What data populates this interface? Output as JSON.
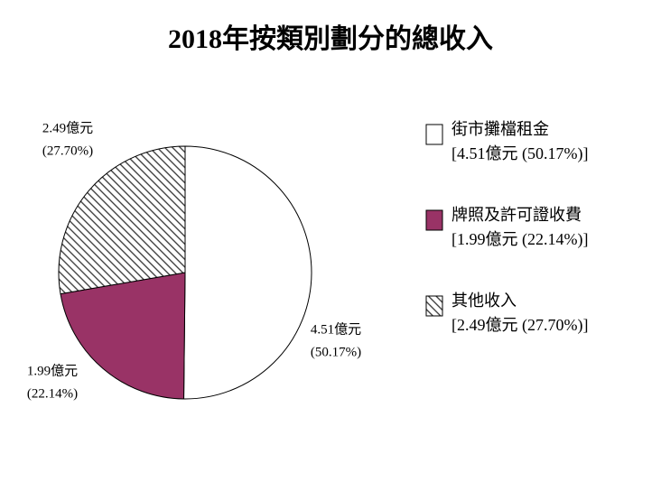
{
  "chart_data": {
    "type": "pie",
    "title": "2018年按類別劃分的總收入",
    "categories": [
      "街市攤檔租金",
      "牌照及許可證收費",
      "其他收入"
    ],
    "values": [
      4.51,
      1.99,
      2.49
    ],
    "value_labels": [
      "4.51億元",
      "1.99億元",
      "2.49億元"
    ],
    "percentages": [
      50.17,
      22.14,
      27.7
    ],
    "percentage_labels": [
      "(50.17%)",
      "(22.14%)",
      "(27.70%)"
    ],
    "legend_details": [
      "[4.51億元 (50.17%)]",
      "[1.99億元 (22.14%)]",
      "[2.49億元 (27.70%)]"
    ],
    "colors": [
      "#ffffff",
      "#993366",
      "hatch"
    ],
    "legend": "right"
  }
}
